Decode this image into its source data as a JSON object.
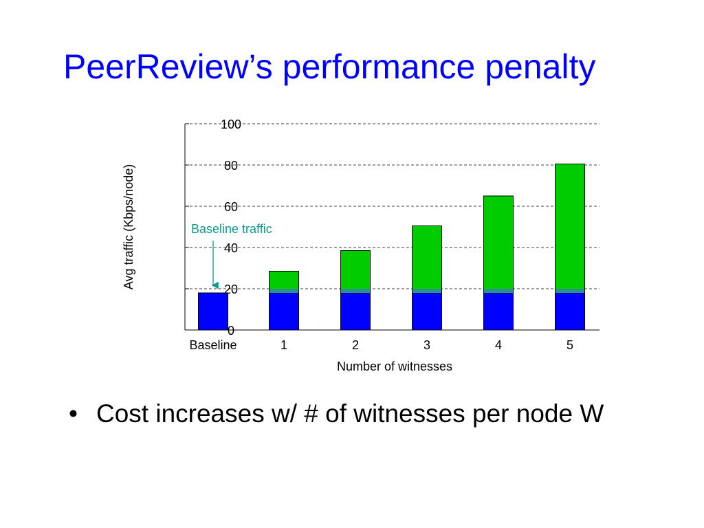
{
  "slide": {
    "title": "PeerReview’s performance penalty",
    "bullet_mark": "•",
    "bullet_text": "Cost increases w/ # of witnesses per node W"
  },
  "colors": {
    "title": "#0000ff",
    "bar_base": "#0000ff",
    "bar_overhead": "#00cc00",
    "bar_band": "#2b8f8f",
    "annotation": "#0a9a8f",
    "grid": "#000000"
  },
  "chart_data": {
    "type": "bar",
    "stacked": true,
    "categories": [
      "Baseline",
      "1",
      "2",
      "3",
      "4",
      "5"
    ],
    "series": [
      {
        "values": [
          18,
          18,
          18,
          18,
          18,
          18
        ]
      },
      {
        "values": [
          0,
          10.5,
          20.5,
          32.5,
          47,
          62.5
        ]
      }
    ],
    "totals": [
      18,
      28.5,
      38.5,
      50.5,
      65,
      80.5
    ],
    "xlabel": "Number of witnesses",
    "ylabel": "Avg traffic (Kbps/node)",
    "ylim": [
      0,
      100
    ],
    "yticks": [
      "0",
      "20",
      "40",
      "60",
      "80",
      "100"
    ],
    "grid": true,
    "annotation": {
      "text": "Baseline traffic",
      "points_to": "Baseline"
    }
  }
}
